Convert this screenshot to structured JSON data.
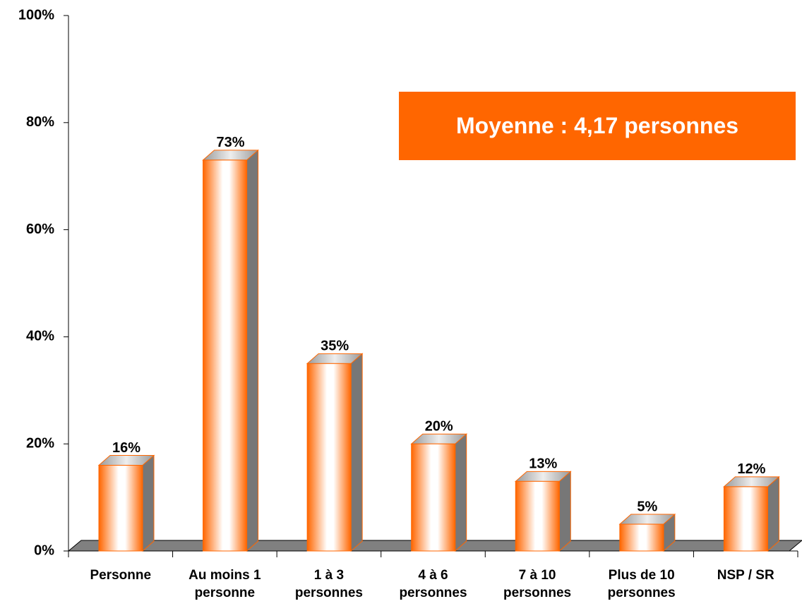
{
  "chart_data": {
    "type": "bar3d",
    "categories": [
      "Personne",
      "Au moins 1 personne",
      "1 à 3 personnes",
      "4 à 6 personnes",
      "7 à 10 personnes",
      "Plus de 10 personnes",
      "NSP / SR"
    ],
    "values": [
      16,
      73,
      35,
      20,
      13,
      5,
      12
    ],
    "value_labels": [
      "16%",
      "73%",
      "35%",
      "20%",
      "13%",
      "5%",
      "12%"
    ],
    "color": "#ff6600",
    "ylim": [
      0,
      100
    ],
    "yticks": [
      {
        "value": 0,
        "label": "0%"
      },
      {
        "value": 20,
        "label": "20%"
      },
      {
        "value": 40,
        "label": "40%"
      },
      {
        "value": 60,
        "label": "60%"
      },
      {
        "value": 80,
        "label": "80%"
      },
      {
        "value": 100,
        "label": "100%"
      }
    ],
    "annotation": "Moyenne : 4,17 personnes"
  }
}
